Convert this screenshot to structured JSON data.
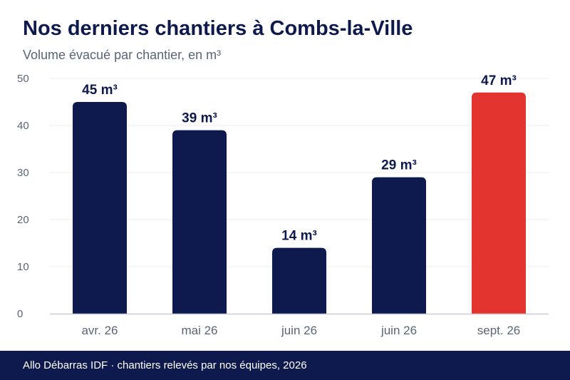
{
  "title": "Nos derniers chantiers à Combs-la-Ville",
  "subtitle": "Volume évacué par chantier, en m³",
  "footer": "Allo Débarras IDF · chantiers relevés par nos équipes, 2026",
  "colors": {
    "navy": "#0e1a4d",
    "highlight": "#e3342f",
    "grid": "#ececf0",
    "axis": "#c9cbd6",
    "tick": "#5a6478"
  },
  "chart_data": {
    "type": "bar",
    "categories": [
      "avr. 26",
      "mai 26",
      "juin 26",
      "juin 26",
      "sept. 26"
    ],
    "values": [
      45,
      39,
      14,
      29,
      47
    ],
    "data_labels": [
      "45 m³",
      "39 m³",
      "14 m³",
      "29 m³",
      "47 m³"
    ],
    "highlight_index": 4,
    "ylim": [
      0,
      50
    ],
    "yticks": [
      0,
      10,
      20,
      30,
      40,
      50
    ],
    "grid": true,
    "xlabel": "",
    "ylabel": ""
  }
}
